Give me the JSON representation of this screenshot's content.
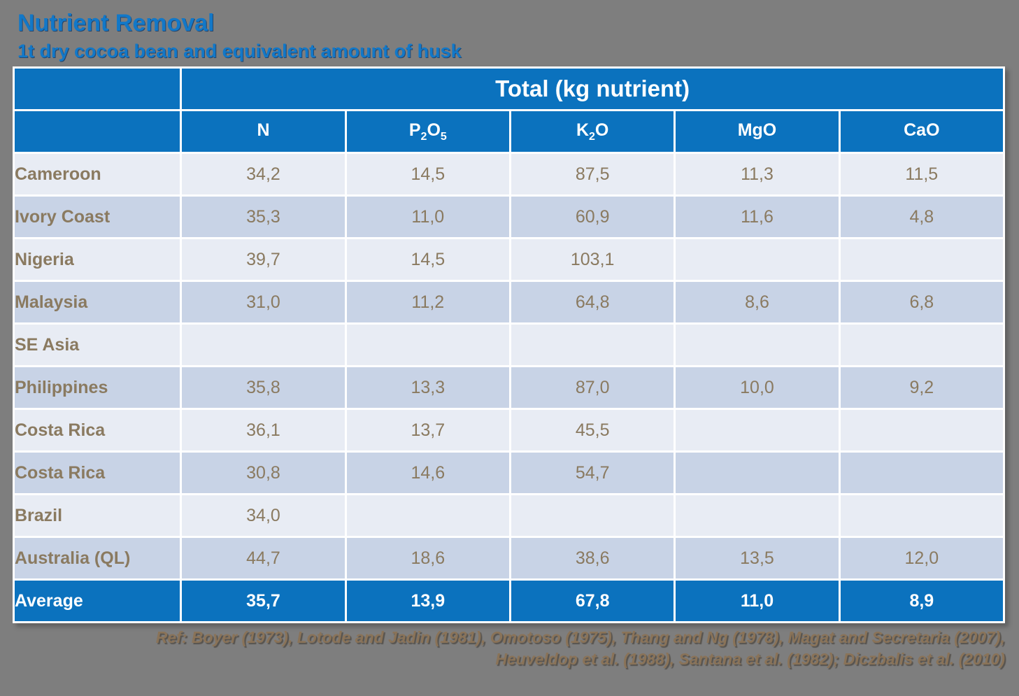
{
  "slide": {
    "title": "Nutrient Removal",
    "subtitle": "1t dry cocoa bean and equivalent amount of husk",
    "reference_line1": "Ref: Boyer (1973), Lotode and Jadin (1981), Omotoso (1975), Thang and Ng (1978), Magat and Secretaria (2007),",
    "reference_line2": "Heuveldop et al. (1988), Santana et al. (1982); Diczbalis et al. (2010)"
  },
  "table": {
    "span_header": "Total (kg nutrient)",
    "columns": [
      {
        "t1": "N",
        "s1": "",
        "t2": "",
        "s2": ""
      },
      {
        "t1": "P",
        "s1": "2",
        "t2": "O",
        "s2": "5"
      },
      {
        "t1": "K",
        "s1": "2",
        "t2": "O",
        "s2": ""
      },
      {
        "t1": "MgO",
        "s1": "",
        "t2": "",
        "s2": ""
      },
      {
        "t1": "CaO",
        "s1": "",
        "t2": "",
        "s2": ""
      }
    ],
    "rows": [
      {
        "label": "Cameroon",
        "values": [
          "34,2",
          "14,5",
          "87,5",
          "11,3",
          "11,5"
        ]
      },
      {
        "label": "Ivory Coast",
        "values": [
          "35,3",
          "11,0",
          "60,9",
          "11,6",
          "4,8"
        ]
      },
      {
        "label": "Nigeria",
        "values": [
          "39,7",
          "14,5",
          "103,1",
          "",
          ""
        ]
      },
      {
        "label": "Malaysia",
        "values": [
          "31,0",
          "11,2",
          "64,8",
          "8,6",
          "6,8"
        ]
      },
      {
        "label": "SE Asia",
        "values": [
          "",
          "",
          "",
          "",
          ""
        ]
      },
      {
        "label": "Philippines",
        "values": [
          "35,8",
          "13,3",
          "87,0",
          "10,0",
          "9,2"
        ]
      },
      {
        "label": "Costa Rica",
        "values": [
          "36,1",
          "13,7",
          "45,5",
          "",
          ""
        ]
      },
      {
        "label": "Costa Rica",
        "values": [
          "30,8",
          "14,6",
          "54,7",
          "",
          ""
        ]
      },
      {
        "label": "Brazil",
        "values": [
          "34,0",
          "",
          "",
          "",
          ""
        ]
      },
      {
        "label": "Australia (QL)",
        "values": [
          "44,7",
          "18,6",
          "38,6",
          "13,5",
          "12,0"
        ]
      }
    ],
    "footer": {
      "label": "Average",
      "values": [
        "35,7",
        "13,9",
        "67,8",
        "11,0",
        "8,9"
      ]
    }
  },
  "colors": {
    "background_gray": "#7E7E7E",
    "header_blue": "#0B72BE",
    "title_blue": "#1278C8",
    "row_light": "#E8ECF4",
    "row_dark": "#C8D3E6",
    "grid_white": "#FFFFFF",
    "text_brown": "#8A7A60",
    "reference_brown": "#8A7358"
  },
  "chart_data": {
    "type": "table",
    "title": "Nutrient Removal",
    "subtitle": "1t dry cocoa bean and equivalent amount of husk",
    "unit": "Total (kg nutrient)",
    "columns": [
      "N",
      "P2O5",
      "K2O",
      "MgO",
      "CaO"
    ],
    "rows": [
      {
        "label": "Cameroon",
        "values": [
          34.2,
          14.5,
          87.5,
          11.3,
          11.5
        ]
      },
      {
        "label": "Ivory Coast",
        "values": [
          35.3,
          11.0,
          60.9,
          11.6,
          4.8
        ]
      },
      {
        "label": "Nigeria",
        "values": [
          39.7,
          14.5,
          103.1,
          null,
          null
        ]
      },
      {
        "label": "Malaysia",
        "values": [
          31.0,
          11.2,
          64.8,
          8.6,
          6.8
        ]
      },
      {
        "label": "SE Asia",
        "values": [
          null,
          null,
          null,
          null,
          null
        ]
      },
      {
        "label": "Philippines",
        "values": [
          35.8,
          13.3,
          87.0,
          10.0,
          9.2
        ]
      },
      {
        "label": "Costa Rica",
        "values": [
          36.1,
          13.7,
          45.5,
          null,
          null
        ]
      },
      {
        "label": "Costa Rica",
        "values": [
          30.8,
          14.6,
          54.7,
          null,
          null
        ]
      },
      {
        "label": "Brazil",
        "values": [
          34.0,
          null,
          null,
          null,
          null
        ]
      },
      {
        "label": "Australia (QL)",
        "values": [
          44.7,
          18.6,
          38.6,
          13.5,
          12.0
        ]
      }
    ],
    "average": {
      "label": "Average",
      "values": [
        35.7,
        13.9,
        67.8,
        11.0,
        8.9
      ]
    },
    "decimal_separator": ",",
    "references": "Ref: Boyer (1973), Lotode and Jadin (1981), Omotoso (1975), Thang and Ng (1978), Magat and Secretaria (2007), Heuveldop et al. (1988), Santana et al. (1982); Diczbalis et al. (2010)"
  }
}
